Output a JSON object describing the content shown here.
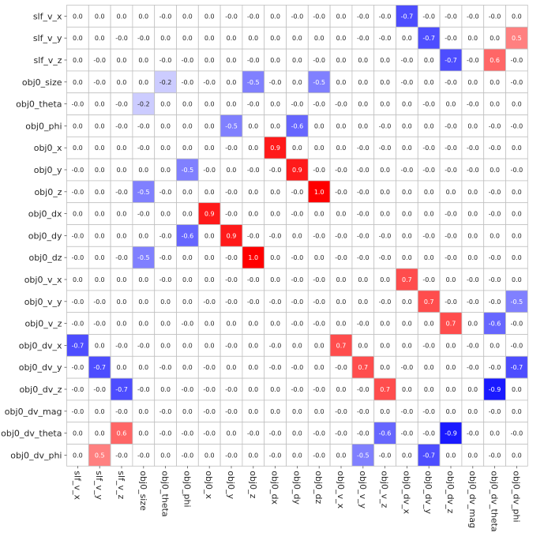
{
  "chart_data": {
    "type": "heatmap",
    "labels": [
      "slf_v_x",
      "slf_v_y",
      "slf_v_z",
      "obj0_size",
      "obj0_theta",
      "obj0_phi",
      "obj0_x",
      "obj0_y",
      "obj0_z",
      "obj0_dx",
      "obj0_dy",
      "obj0_dz",
      "obj0_v_x",
      "obj0_v_y",
      "obj0_v_z",
      "obj0_dv_x",
      "obj0_dv_y",
      "obj0_dv_z",
      "obj0_dv_mag",
      "obj0_dv_theta",
      "obj0_dv_phi"
    ],
    "display_values": [
      [
        "0.0",
        "0.0",
        "0.0",
        "0.0",
        "-0.0",
        "0.0",
        "0.0",
        "-0.0",
        "-0.0",
        "0.0",
        "-0.0",
        "-0.0",
        "0.0",
        "-0.0",
        "-0.0",
        "-0.7",
        "-0.0",
        "-0.0",
        "-0.0",
        "-0.0",
        "0.0"
      ],
      [
        "0.0",
        "0.0",
        "-0.0",
        "-0.0",
        "0.0",
        "0.0",
        "0.0",
        "0.0",
        "0.0",
        "0.0",
        "0.0",
        "0.0",
        "0.0",
        "-0.0",
        "-0.0",
        "0.0",
        "-0.7",
        "-0.0",
        "0.0",
        "0.0",
        "0.5"
      ],
      [
        "0.0",
        "-0.0",
        "0.0",
        "0.0",
        "-0.0",
        "-0.0",
        "0.0",
        "0.0",
        "-0.0",
        "0.0",
        "0.0",
        "-0.0",
        "0.0",
        "0.0",
        "0.0",
        "-0.0",
        "0.0",
        "-0.7",
        "-0.0",
        "0.6",
        "-0.0"
      ],
      [
        "0.0",
        "-0.0",
        "0.0",
        "0.0",
        "-0.2",
        "-0.0",
        "-0.0",
        "0.0",
        "-0.5",
        "-0.0",
        "0.0",
        "-0.5",
        "0.0",
        "0.0",
        "0.0",
        "-0.0",
        "0.0",
        "-0.0",
        "0.0",
        "0.0",
        "-0.0"
      ],
      [
        "-0.0",
        "0.0",
        "-0.0",
        "-0.2",
        "0.0",
        "0.0",
        "0.0",
        "0.0",
        "-0.0",
        "0.0",
        "-0.0",
        "-0.0",
        "-0.0",
        "0.0",
        "0.0",
        "0.0",
        "-0.0",
        "0.0",
        "-0.0",
        "0.0",
        "0.0"
      ],
      [
        "0.0",
        "0.0",
        "-0.0",
        "-0.0",
        "0.0",
        "0.0",
        "0.0",
        "-0.5",
        "0.0",
        "0.0",
        "-0.6",
        "0.0",
        "0.0",
        "0.0",
        "-0.0",
        "0.0",
        "0.0",
        "-0.0",
        "0.0",
        "-0.0",
        "-0.0"
      ],
      [
        "0.0",
        "0.0",
        "0.0",
        "-0.0",
        "0.0",
        "0.0",
        "0.0",
        "-0.0",
        "0.0",
        "0.9",
        "0.0",
        "0.0",
        "0.0",
        "-0.0",
        "-0.0",
        "0.0",
        "-0.0",
        "-0.0",
        "-0.0",
        "-0.0",
        "0.0"
      ],
      [
        "-0.0",
        "0.0",
        "0.0",
        "0.0",
        "0.0",
        "-0.5",
        "-0.0",
        "0.0",
        "-0.0",
        "-0.0",
        "0.9",
        "-0.0",
        "-0.0",
        "-0.0",
        "0.0",
        "-0.0",
        "-0.0",
        "-0.0",
        "-0.0",
        "0.0",
        "-0.0"
      ],
      [
        "-0.0",
        "0.0",
        "-0.0",
        "-0.5",
        "-0.0",
        "0.0",
        "0.0",
        "-0.0",
        "0.0",
        "0.0",
        "-0.0",
        "1.0",
        "-0.0",
        "-0.0",
        "0.0",
        "0.0",
        "0.0",
        "0.0",
        "0.0",
        "-0.0",
        "0.0"
      ],
      [
        "0.0",
        "0.0",
        "0.0",
        "-0.0",
        "0.0",
        "0.0",
        "0.9",
        "-0.0",
        "0.0",
        "0.0",
        "-0.0",
        "0.0",
        "0.0",
        "-0.0",
        "0.0",
        "0.0",
        "0.0",
        "-0.0",
        "0.0",
        "-0.0",
        "0.0"
      ],
      [
        "-0.0",
        "0.0",
        "0.0",
        "0.0",
        "-0.0",
        "-0.6",
        "0.0",
        "0.9",
        "-0.0",
        "-0.0",
        "0.0",
        "-0.0",
        "-0.0",
        "-0.0",
        "-0.0",
        "0.0",
        "-0.0",
        "-0.0",
        "0.0",
        "0.0",
        "0.0"
      ],
      [
        "-0.0",
        "0.0",
        "-0.0",
        "-0.5",
        "-0.0",
        "0.0",
        "0.0",
        "-0.0",
        "1.0",
        "0.0",
        "-0.0",
        "0.0",
        "-0.0",
        "-0.0",
        "-0.0",
        "0.0",
        "0.0",
        "-0.0",
        "0.0",
        "-0.0",
        "0.0"
      ],
      [
        "0.0",
        "0.0",
        "0.0",
        "0.0",
        "-0.0",
        "0.0",
        "0.0",
        "-0.0",
        "-0.0",
        "0.0",
        "-0.0",
        "-0.0",
        "0.0",
        "0.0",
        "0.0",
        "0.7",
        "-0.0",
        "0.0",
        "-0.0",
        "-0.0",
        "0.0"
      ],
      [
        "-0.0",
        "-0.0",
        "0.0",
        "0.0",
        "0.0",
        "0.0",
        "-0.0",
        "-0.0",
        "-0.0",
        "-0.0",
        "-0.0",
        "-0.0",
        "0.0",
        "0.0",
        "-0.0",
        "0.0",
        "0.7",
        "-0.0",
        "-0.0",
        "-0.0",
        "-0.5"
      ],
      [
        "-0.0",
        "-0.0",
        "0.0",
        "0.0",
        "0.0",
        "-0.0",
        "0.0",
        "0.0",
        "0.0",
        "0.0",
        "-0.0",
        "-0.0",
        "0.0",
        "-0.0",
        "0.0",
        "0.0",
        "0.0",
        "0.7",
        "0.0",
        "-0.6",
        "-0.0"
      ],
      [
        "-0.7",
        "0.0",
        "-0.0",
        "-0.0",
        "0.0",
        "0.0",
        "0.0",
        "-0.0",
        "0.0",
        "-0.0",
        "0.0",
        "0.0",
        "0.7",
        "0.0",
        "0.0",
        "0.0",
        "-0.0",
        "0.0",
        "-0.0",
        "0.0",
        "-0.0"
      ],
      [
        "-0.0",
        "-0.7",
        "0.0",
        "0.0",
        "-0.0",
        "0.0",
        "-0.0",
        "0.0",
        "0.0",
        "-0.0",
        "-0.0",
        "0.0",
        "-0.0",
        "0.7",
        "0.0",
        "-0.0",
        "0.0",
        "0.0",
        "-0.0",
        "-0.0",
        "-0.7"
      ],
      [
        "-0.0",
        "-0.0",
        "-0.7",
        "-0.0",
        "0.0",
        "-0.0",
        "-0.0",
        "-0.0",
        "0.0",
        "0.0",
        "-0.0",
        "-0.0",
        "0.0",
        "-0.0",
        "0.7",
        "0.0",
        "0.0",
        "0.0",
        "0.0",
        "-0.9",
        "0.0"
      ],
      [
        "-0.0",
        "0.0",
        "-0.0",
        "0.0",
        "-0.0",
        "0.0",
        "-0.0",
        "-0.0",
        "0.0",
        "0.0",
        "0.0",
        "0.0",
        "-0.0",
        "-0.0",
        "0.0",
        "-0.0",
        "-0.0",
        "0.0",
        "0.0",
        "-0.0",
        "0.0"
      ],
      [
        "0.0",
        "0.0",
        "0.6",
        "0.0",
        "-0.0",
        "-0.0",
        "-0.0",
        "0.0",
        "-0.0",
        "-0.0",
        "0.0",
        "-0.0",
        "-0.0",
        "-0.0",
        "-0.6",
        "-0.0",
        "-0.0",
        "-0.9",
        "-0.0",
        "0.0",
        "-0.0"
      ],
      [
        "0.0",
        "0.5",
        "-0.0",
        "-0.0",
        "0.0",
        "-0.0",
        "0.0",
        "-0.0",
        "0.0",
        "-0.0",
        "0.0",
        "-0.0",
        "0.0",
        "-0.5",
        "-0.0",
        "0.0",
        "-0.7",
        "0.0",
        "0.0",
        "-0.0",
        "0.0"
      ]
    ],
    "color_scale": {
      "min": -1.0,
      "max": 1.0,
      "negative": "#0000ff",
      "zero": "#ffffff",
      "positive": "#ff0000"
    },
    "gridline_color": "#c0c0c0",
    "legend": "none"
  }
}
